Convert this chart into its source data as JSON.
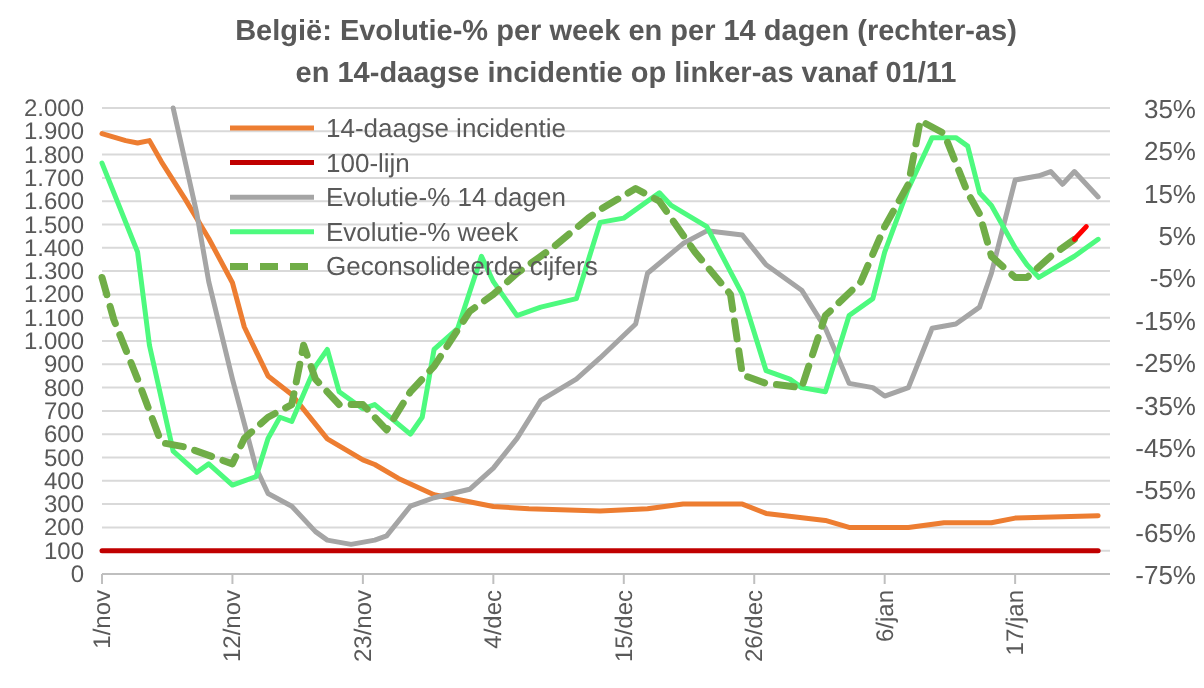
{
  "chart_data": {
    "type": "line",
    "title": "België: Evolutie-% per week en per 14 dagen (rechter-as)\nen 14-daagse incidentie op linker-as  vanaf 01/11",
    "categories": [
      "1/nov",
      null,
      null,
      null,
      null,
      null,
      null,
      null,
      null,
      null,
      null,
      "12/nov",
      null,
      null,
      null,
      null,
      null,
      null,
      null,
      null,
      null,
      null,
      "23/nov",
      null,
      null,
      null,
      null,
      null,
      null,
      null,
      null,
      null,
      null,
      "4/dec",
      null,
      null,
      null,
      null,
      null,
      null,
      null,
      null,
      null,
      null,
      "15/dec",
      null,
      null,
      null,
      null,
      null,
      null,
      null,
      null,
      null,
      null,
      "26/dec",
      null,
      null,
      null,
      null,
      null,
      null,
      null,
      null,
      null,
      null,
      "6/jan",
      null,
      null,
      null,
      null,
      null,
      null,
      null,
      null,
      null,
      null,
      "17/jan",
      null,
      null,
      null,
      null,
      null,
      null,
      null
    ],
    "ylim": [
      0,
      2000
    ],
    "yticks": [
      {
        "value": 0,
        "label": "0"
      },
      {
        "value": 100,
        "label": "100"
      },
      {
        "value": 200,
        "label": "200"
      },
      {
        "value": 300,
        "label": "300"
      },
      {
        "value": 400,
        "label": "400"
      },
      {
        "value": 500,
        "label": "500"
      },
      {
        "value": 600,
        "label": "600"
      },
      {
        "value": 700,
        "label": "700"
      },
      {
        "value": 800,
        "label": "800"
      },
      {
        "value": 900,
        "label": "900"
      },
      {
        "value": 1000,
        "label": "1.000"
      },
      {
        "value": 1100,
        "label": "1.100"
      },
      {
        "value": 1200,
        "label": "1.200"
      },
      {
        "value": 1300,
        "label": "1.300"
      },
      {
        "value": 1400,
        "label": "1.400"
      },
      {
        "value": 1500,
        "label": "1.500"
      },
      {
        "value": 1600,
        "label": "1.600"
      },
      {
        "value": 1700,
        "label": "1.700"
      },
      {
        "value": 1800,
        "label": "1.800"
      },
      {
        "value": 1900,
        "label": "1.900"
      },
      {
        "value": 2000,
        "label": "2.000"
      }
    ],
    "y2lim": [
      -75,
      35
    ],
    "y2ticks": [
      {
        "value": 35,
        "label": "35%"
      },
      {
        "value": 25,
        "label": "25%"
      },
      {
        "value": 15,
        "label": "15%"
      },
      {
        "value": 5,
        "label": "5%"
      },
      {
        "value": -5,
        "label": "-5%"
      },
      {
        "value": -15,
        "label": "-15%"
      },
      {
        "value": -25,
        "label": "-25%"
      },
      {
        "value": -35,
        "label": "-35%"
      },
      {
        "value": -45,
        "label": "-45%"
      },
      {
        "value": -55,
        "label": "-55%"
      },
      {
        "value": -65,
        "label": "-65%"
      },
      {
        "value": -75,
        "label": "-75%"
      }
    ],
    "grid": "y",
    "legend": "top left",
    "series": [
      {
        "name": "14-daagse incidentie",
        "color": "#ed7d31",
        "values": [
          1890,
          null,
          1860,
          1850,
          1860,
          1770,
          null,
          1610,
          null,
          1440,
          null,
          1250,
          1060,
          null,
          850,
          null,
          770,
          null,
          null,
          580,
          null,
          null,
          490,
          470,
          null,
          410,
          null,
          null,
          340,
          null,
          null,
          null,
          null,
          290,
          null,
          null,
          280,
          null,
          null,
          null,
          null,
          null,
          270,
          null,
          null,
          null,
          280,
          null,
          null,
          300,
          null,
          null,
          null,
          null,
          300,
          null,
          260,
          null,
          null,
          null,
          null,
          230,
          null,
          200,
          null,
          null,
          null,
          null,
          200,
          null,
          null,
          220,
          null,
          null,
          null,
          220,
          null,
          240,
          null,
          null,
          null,
          null,
          null,
          null,
          250
        ]
      },
      {
        "name": "100-lijn",
        "color": "#c00000",
        "values": [
          100,
          null,
          null,
          null,
          null,
          null,
          null,
          null,
          null,
          null,
          null,
          null,
          null,
          null,
          null,
          null,
          null,
          null,
          null,
          null,
          null,
          null,
          null,
          null,
          null,
          null,
          null,
          null,
          null,
          null,
          null,
          null,
          null,
          null,
          null,
          null,
          null,
          null,
          null,
          null,
          null,
          null,
          null,
          null,
          null,
          null,
          null,
          null,
          null,
          null,
          null,
          null,
          null,
          null,
          null,
          null,
          null,
          null,
          null,
          null,
          null,
          null,
          null,
          null,
          null,
          null,
          null,
          null,
          null,
          null,
          null,
          null,
          null,
          null,
          null,
          null,
          null,
          null,
          null,
          null,
          null,
          null,
          null,
          null,
          100
        ]
      },
      {
        "name": "Evolutie-% 14 dagen",
        "color": "#a5a5a5",
        "axis": "y2",
        "values": [
          null,
          null,
          null,
          null,
          null,
          null,
          35,
          null,
          10,
          -6,
          null,
          -29,
          null,
          -50,
          -56,
          null,
          -59,
          null,
          -65,
          -67,
          null,
          -68,
          null,
          -67,
          -66,
          null,
          -59,
          null,
          -57,
          null,
          null,
          -55,
          null,
          -50,
          null,
          -43,
          null,
          -34,
          null,
          null,
          -29,
          null,
          -24,
          null,
          null,
          -16,
          -4,
          null,
          null,
          3,
          null,
          6,
          null,
          null,
          5,
          null,
          -2,
          null,
          null,
          -8,
          null,
          -17,
          null,
          -30,
          null,
          -31,
          -33,
          null,
          -31,
          null,
          -17,
          null,
          -16,
          null,
          -12,
          -4,
          null,
          18,
          null,
          19,
          20,
          17,
          20,
          null,
          14
        ]
      },
      {
        "name": "Evolutie-% week",
        "color": "#4dfa7e",
        "axis": "y2",
        "values": [
          22,
          null,
          null,
          1,
          -21,
          null,
          -46,
          null,
          -51,
          -49,
          null,
          -54,
          null,
          -52,
          -43,
          -38,
          -39,
          null,
          -26,
          -22,
          -32,
          null,
          -36,
          -35,
          null,
          null,
          -42,
          -38,
          -22,
          null,
          -17,
          null,
          0,
          -6,
          null,
          -14,
          null,
          -12,
          null,
          null,
          -10,
          null,
          8,
          null,
          9,
          null,
          null,
          15,
          12,
          null,
          null,
          7,
          null,
          null,
          -9,
          null,
          -27,
          null,
          -29,
          -31,
          null,
          -32,
          null,
          -14,
          null,
          -10,
          1,
          null,
          16,
          null,
          28,
          null,
          28,
          26,
          15,
          12,
          null,
          2,
          -2,
          -5,
          null,
          null,
          0,
          2,
          4
        ]
      },
      {
        "name": "Geconsolideerde cijfers",
        "color": "#70ad47",
        "axis": "y2",
        "line_style": "dashed",
        "values": [
          -5,
          -15,
          null,
          -29,
          null,
          -44,
          null,
          -45,
          null,
          -47,
          null,
          -49,
          -43,
          null,
          -38,
          null,
          -35,
          -21,
          -29,
          null,
          -35,
          null,
          -35,
          null,
          -41,
          null,
          -32,
          null,
          -26,
          null,
          null,
          -13,
          null,
          -9,
          null,
          -4,
          null,
          null,
          2,
          null,
          null,
          9,
          11,
          null,
          null,
          16,
          null,
          13,
          null,
          null,
          1,
          null,
          null,
          -9,
          -28,
          null,
          -30,
          null,
          null,
          -31,
          null,
          -14,
          null,
          null,
          -6,
          null,
          7,
          null,
          17,
          32,
          null,
          29,
          null,
          15,
          10,
          0,
          null,
          -5,
          -5,
          null,
          0,
          null,
          4,
          null,
          null
        ]
      },
      {
        "color": "#ff0000",
        "axis": "y2",
        "values": [
          null,
          null,
          null,
          null,
          null,
          null,
          null,
          null,
          null,
          null,
          null,
          null,
          null,
          null,
          null,
          null,
          null,
          null,
          null,
          null,
          null,
          null,
          null,
          null,
          null,
          null,
          null,
          null,
          null,
          null,
          null,
          null,
          null,
          null,
          null,
          null,
          null,
          null,
          null,
          null,
          null,
          null,
          null,
          null,
          null,
          null,
          null,
          null,
          null,
          null,
          null,
          null,
          null,
          null,
          null,
          null,
          null,
          null,
          null,
          null,
          null,
          null,
          null,
          null,
          null,
          null,
          null,
          null,
          null,
          null,
          null,
          null,
          null,
          null,
          null,
          null,
          null,
          null,
          null,
          null,
          null,
          null,
          4,
          7,
          null
        ]
      }
    ]
  }
}
